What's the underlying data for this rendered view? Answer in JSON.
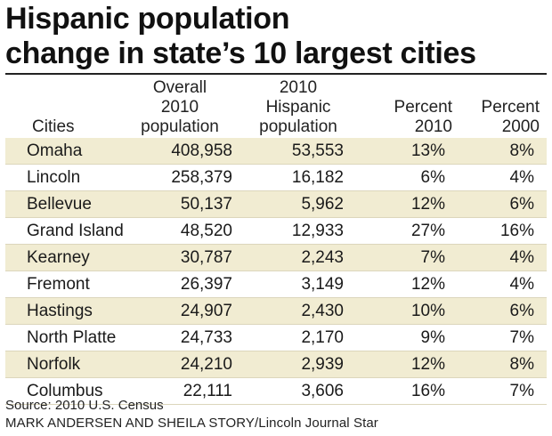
{
  "chart_data": {
    "type": "table",
    "title_lines": [
      "Hispanic population",
      "change in state’s 10 largest cities"
    ],
    "columns": [
      "Cities",
      "Overall\n2010\npopulation",
      "2010\nHispanic\npopulation",
      "Percent\n2010",
      "Percent\n2000"
    ],
    "rows": [
      {
        "city": "Omaha",
        "overall_2010": "408,958",
        "hispanic_2010": "53,553",
        "pct_2010": "13%",
        "pct_2000": "8%"
      },
      {
        "city": "Lincoln",
        "overall_2010": "258,379",
        "hispanic_2010": "16,182",
        "pct_2010": "6%",
        "pct_2000": "4%"
      },
      {
        "city": "Bellevue",
        "overall_2010": "50,137",
        "hispanic_2010": "5,962",
        "pct_2010": "12%",
        "pct_2000": "6%"
      },
      {
        "city": "Grand Island",
        "overall_2010": "48,520",
        "hispanic_2010": "12,933",
        "pct_2010": "27%",
        "pct_2000": "16%"
      },
      {
        "city": "Kearney",
        "overall_2010": "30,787",
        "hispanic_2010": "2,243",
        "pct_2010": "7%",
        "pct_2000": "4%"
      },
      {
        "city": "Fremont",
        "overall_2010": "26,397",
        "hispanic_2010": "3,149",
        "pct_2010": "12%",
        "pct_2000": "4%"
      },
      {
        "city": "Hastings",
        "overall_2010": "24,907",
        "hispanic_2010": "2,430",
        "pct_2010": "10%",
        "pct_2000": "6%"
      },
      {
        "city": "North Platte",
        "overall_2010": "24,733",
        "hispanic_2010": "2,170",
        "pct_2010": "9%",
        "pct_2000": "7%"
      },
      {
        "city": "Norfolk",
        "overall_2010": "24,210",
        "hispanic_2010": "2,939",
        "pct_2010": "12%",
        "pct_2000": "8%"
      },
      {
        "city": "Columbus",
        "overall_2010": "22,111",
        "hispanic_2010": "3,606",
        "pct_2010": "16%",
        "pct_2000": "7%"
      }
    ],
    "row_shading": "alternating"
  },
  "footer": {
    "source": "Source: 2010 U.S. Census",
    "credit": "MARK ANDERSEN AND SHEILA STORY/Lincoln Journal Star"
  },
  "colors": {
    "shade": "#f1ecd2",
    "text": "#1a1a1a"
  }
}
